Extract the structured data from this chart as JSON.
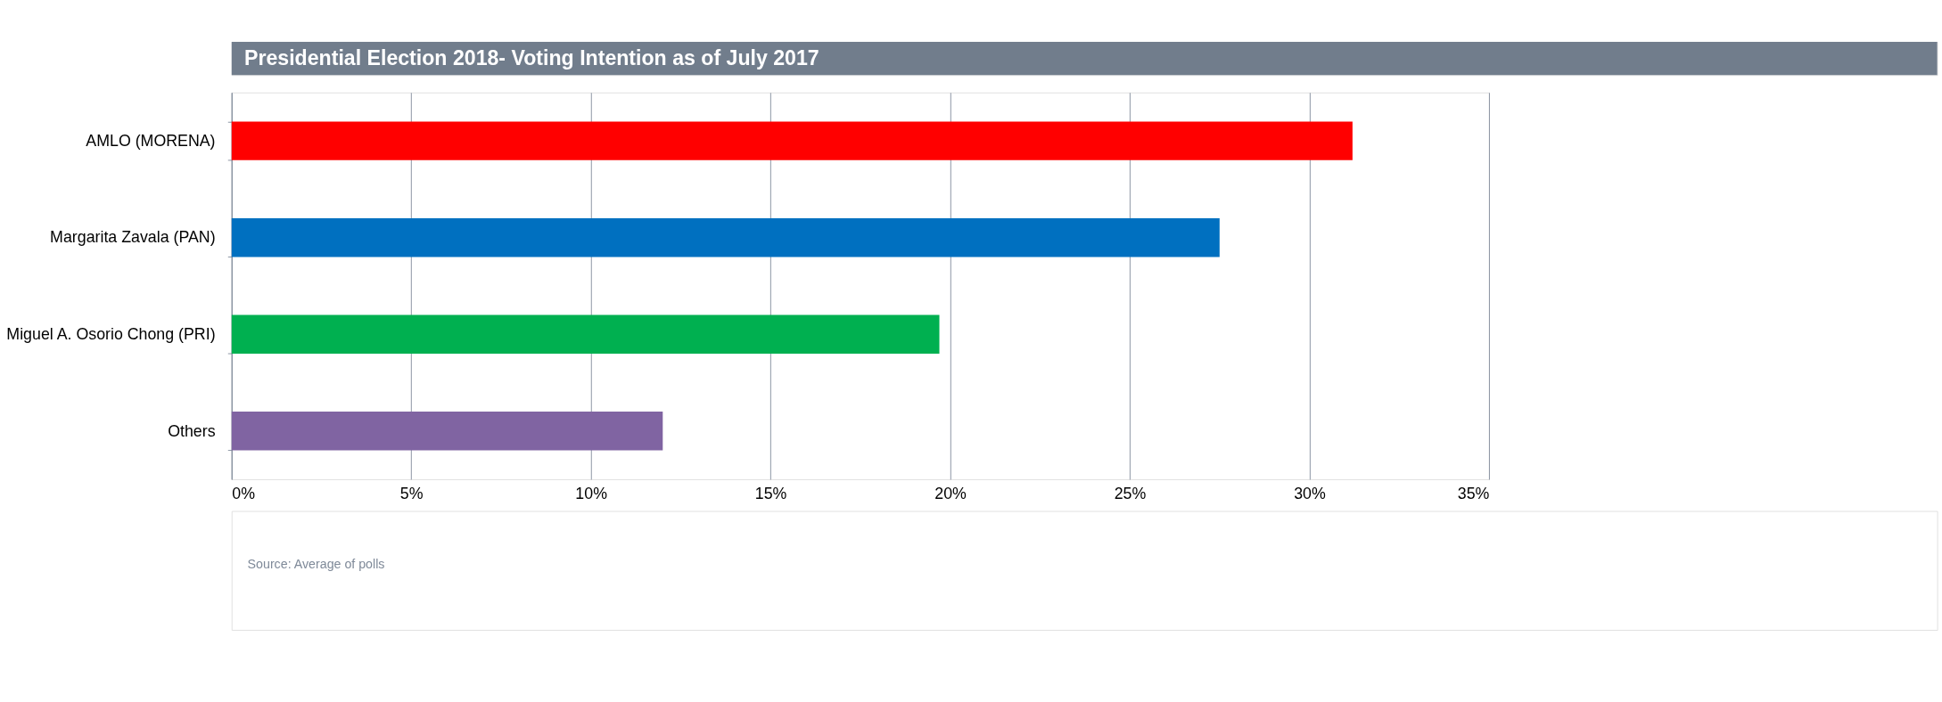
{
  "chart_data": {
    "type": "bar",
    "orientation": "horizontal",
    "title": "Presidential Election 2018- Voting Intention as of July 2017",
    "categories": [
      "AMLO (MORENA)",
      "Margarita Zavala (PAN)",
      "Miguel A. Osorio Chong (PRI)",
      "Others"
    ],
    "values": [
      31.2,
      27.5,
      19.7,
      12.0
    ],
    "colors": [
      "#ff0000",
      "#0070c0",
      "#00b050",
      "#8064a2"
    ],
    "xlim": [
      0,
      35
    ],
    "xticks": [
      {
        "value": 0,
        "label": "0%"
      },
      {
        "value": 5,
        "label": "5%"
      },
      {
        "value": 10,
        "label": "10%"
      },
      {
        "value": 15,
        "label": "15%"
      },
      {
        "value": 20,
        "label": "20%"
      },
      {
        "value": 25,
        "label": "25%"
      },
      {
        "value": 30,
        "label": "30%"
      },
      {
        "value": 35,
        "label": "35%"
      }
    ],
    "grid": "x",
    "legend": false,
    "annotations": [
      "Source:  Average of polls"
    ]
  }
}
